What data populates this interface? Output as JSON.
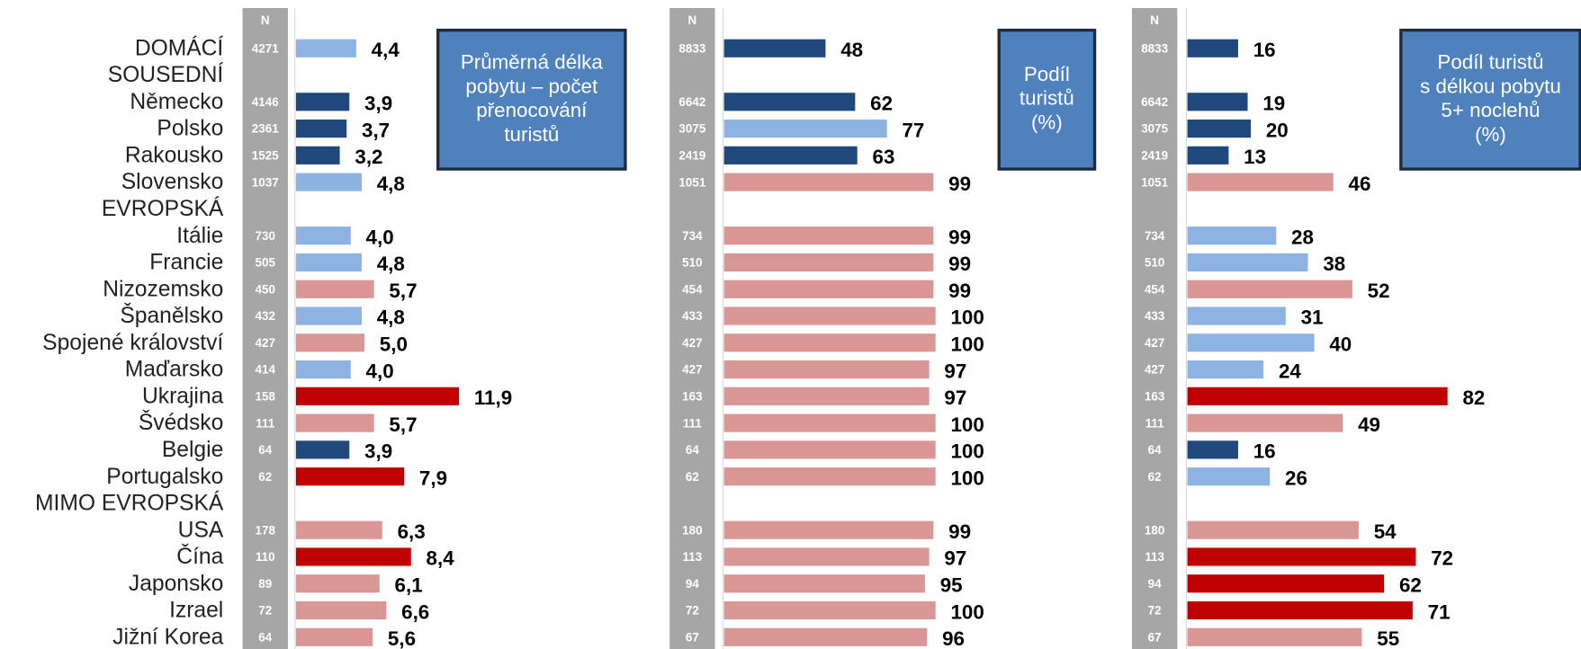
{
  "chart_data": {
    "type": "bar",
    "orientation": "horizontal",
    "categories": [
      "DOMÁCÍ",
      "SOUSEDNÍ",
      "Německo",
      "Polsko",
      "Rakousko",
      "Slovensko",
      "EVROPSKÁ",
      "Itálie",
      "Francie",
      "Nizozemsko",
      "Španělsko",
      "Spojené království",
      "Maďarsko",
      "Ukrajina",
      "Švédsko",
      "Belgie",
      "Portugalsko",
      "MIMO EVROPSKÁ",
      "USA",
      "Čína",
      "Japonsko",
      "Izrael",
      "Jižní Korea"
    ],
    "n_header": "N",
    "panels": [
      {
        "title_lines": [
          "Průměrná délka",
          "pobytu – počet",
          "přenocování",
          "turistů"
        ],
        "n": [
          4271,
          null,
          4146,
          2361,
          1525,
          1037,
          null,
          730,
          505,
          450,
          432,
          427,
          414,
          158,
          111,
          64,
          62,
          null,
          178,
          110,
          89,
          72,
          64
        ],
        "values": [
          4.4,
          null,
          3.9,
          3.7,
          3.2,
          4.8,
          null,
          4.0,
          4.8,
          5.7,
          4.8,
          5.0,
          4.0,
          11.9,
          5.7,
          3.9,
          7.9,
          null,
          6.3,
          8.4,
          6.1,
          6.6,
          5.6
        ],
        "value_labels": [
          "4,4",
          null,
          "3,9",
          "3,7",
          "3,2",
          "4,8",
          null,
          "4,0",
          "4,8",
          "5,7",
          "4,8",
          "5,0",
          "4,0",
          "11,9",
          "5,7",
          "3,9",
          "7,9",
          null,
          "6,3",
          "8,4",
          "6,1",
          "6,6",
          "5,6"
        ],
        "colors": [
          "#8db3e2",
          null,
          "#1f497d",
          "#1f497d",
          "#1f497d",
          "#8db3e2",
          null,
          "#8db3e2",
          "#8db3e2",
          "#d99694",
          "#8db3e2",
          "#d99694",
          "#8db3e2",
          "#c00000",
          "#d99694",
          "#1f497d",
          "#c00000",
          null,
          "#d99694",
          "#c00000",
          "#d99694",
          "#d99694",
          "#d99694"
        ]
      },
      {
        "title_lines": [
          "Podíl",
          "turistů",
          "(%)"
        ],
        "n": [
          8833,
          null,
          6642,
          3075,
          2419,
          1051,
          null,
          734,
          510,
          454,
          433,
          427,
          427,
          163,
          111,
          64,
          62,
          null,
          180,
          113,
          94,
          72,
          67
        ],
        "values": [
          48,
          null,
          62,
          77,
          63,
          99,
          null,
          99,
          99,
          99,
          100,
          100,
          97,
          97,
          100,
          100,
          100,
          null,
          99,
          97,
          95,
          100,
          96
        ],
        "colors": [
          "#1f497d",
          null,
          "#1f497d",
          "#8db3e2",
          "#1f497d",
          "#d99694",
          null,
          "#d99694",
          "#d99694",
          "#d99694",
          "#d99694",
          "#d99694",
          "#d99694",
          "#d99694",
          "#d99694",
          "#d99694",
          "#d99694",
          null,
          "#d99694",
          "#d99694",
          "#d99694",
          "#d99694",
          "#d99694"
        ]
      },
      {
        "title_lines": [
          "Podíl turistů",
          "s délkou pobytu",
          "5+ noclehů",
          "(%)"
        ],
        "n": [
          8833,
          null,
          6642,
          3075,
          2419,
          1051,
          null,
          734,
          510,
          454,
          433,
          427,
          427,
          163,
          111,
          64,
          62,
          null,
          180,
          113,
          94,
          72,
          67
        ],
        "values": [
          16,
          null,
          19,
          20,
          13,
          46,
          null,
          28,
          38,
          52,
          31,
          40,
          24,
          82,
          49,
          16,
          26,
          null,
          54,
          72,
          62,
          71,
          55
        ],
        "colors": [
          "#1f497d",
          null,
          "#1f497d",
          "#1f497d",
          "#1f497d",
          "#d99694",
          null,
          "#8db3e2",
          "#8db3e2",
          "#d99694",
          "#8db3e2",
          "#8db3e2",
          "#8db3e2",
          "#c00000",
          "#d99694",
          "#1f497d",
          "#8db3e2",
          null,
          "#d99694",
          "#c00000",
          "#c00000",
          "#c00000",
          "#d99694"
        ]
      }
    ]
  }
}
